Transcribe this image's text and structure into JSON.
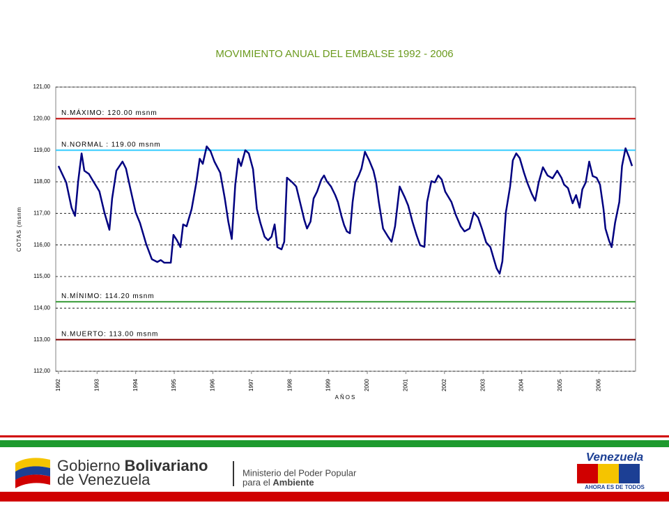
{
  "chart_data": {
    "type": "line",
    "title": "MOVIMIENTO ANUAL DEL EMBALSE 1992 - 2006",
    "y_label": "COTAS (msnm",
    "x_label": "AÑOS",
    "color": "#000080",
    "xlim": [
      1991.93,
      2006.95
    ],
    "xticks": [
      1992,
      1993,
      1994,
      1995,
      1996,
      1997,
      1998,
      1999,
      2000,
      2001,
      2002,
      2003,
      2004,
      2005,
      2006
    ],
    "ylim": [
      112,
      121
    ],
    "yticks": [
      {
        "value": 112,
        "label": "112,00"
      },
      {
        "value": 113,
        "label": "113,00"
      },
      {
        "value": 114,
        "label": "114,00"
      },
      {
        "value": 115,
        "label": "115,00"
      },
      {
        "value": 116,
        "label": "116,00"
      },
      {
        "value": 117,
        "label": "117,00"
      },
      {
        "value": 118,
        "label": "118,00"
      },
      {
        "value": 119,
        "label": "119,00"
      },
      {
        "value": 120,
        "label": "120,00"
      },
      {
        "value": 121,
        "label": "121,00"
      }
    ],
    "grid": true,
    "reference_lines": [
      {
        "value": 120,
        "label": "N.MÁXIMO: 120.00 msnm",
        "color": "#c00000"
      },
      {
        "value": 119,
        "label": "N.NORMAL : 119.00 msnm",
        "color": "#33ccff"
      },
      {
        "value": 114.2,
        "label": "N.MÍNIMO: 114.20 msnm",
        "color": "#339933"
      },
      {
        "value": 113,
        "label": "N.MUERTO: 113.00 msnm",
        "color": "#800000"
      }
    ],
    "x": [
      1992.0,
      1992.2,
      1992.34,
      1992.43,
      1992.51,
      1992.6,
      1992.67,
      1992.79,
      1992.92,
      1993.06,
      1993.19,
      1993.32,
      1993.39,
      1993.5,
      1993.66,
      1993.75,
      1993.86,
      1994.0,
      1994.11,
      1994.27,
      1994.42,
      1994.56,
      1994.65,
      1994.74,
      1994.91,
      1994.98,
      1995.07,
      1995.16,
      1995.23,
      1995.32,
      1995.45,
      1995.57,
      1995.66,
      1995.74,
      1995.84,
      1995.94,
      1996.04,
      1996.19,
      1996.31,
      1996.4,
      1996.49,
      1996.58,
      1996.66,
      1996.73,
      1996.84,
      1996.93,
      1997.04,
      1997.14,
      1997.23,
      1997.34,
      1997.43,
      1997.52,
      1997.6,
      1997.67,
      1997.78,
      1997.85,
      1997.92,
      1998.06,
      1998.16,
      1998.28,
      1998.37,
      1998.44,
      1998.53,
      1998.61,
      1998.7,
      1998.81,
      1998.88,
      1998.95,
      1999.06,
      1999.17,
      1999.24,
      1999.33,
      1999.4,
      1999.47,
      1999.55,
      1999.62,
      1999.69,
      1999.78,
      1999.85,
      1999.94,
      2000.05,
      2000.16,
      2000.23,
      2000.3,
      2000.41,
      2000.54,
      2000.63,
      2000.72,
      2000.84,
      2000.97,
      2001.06,
      2001.17,
      2001.28,
      2001.37,
      2001.48,
      2001.55,
      2001.66,
      2001.75,
      2001.84,
      2001.93,
      2002.02,
      2002.18,
      2002.29,
      2002.42,
      2002.52,
      2002.65,
      2002.76,
      2002.87,
      2002.97,
      2003.08,
      2003.19,
      2003.28,
      2003.35,
      2003.43,
      2003.5,
      2003.59,
      2003.7,
      2003.77,
      2003.86,
      2003.95,
      2004.06,
      2004.15,
      2004.26,
      2004.35,
      2004.44,
      2004.55,
      2004.67,
      2004.8,
      2004.92,
      2005.03,
      2005.1,
      2005.2,
      2005.32,
      2005.41,
      2005.5,
      2005.57,
      2005.66,
      2005.75,
      2005.84,
      2005.94,
      2006.03,
      2006.12,
      2006.17,
      2006.26,
      2006.33,
      2006.42,
      2006.53,
      2006.6,
      2006.69,
      2006.78,
      2006.86
    ],
    "values": [
      118.5,
      117.98,
      117.18,
      116.92,
      118.0,
      118.9,
      118.35,
      118.25,
      117.98,
      117.7,
      117.03,
      116.48,
      117.47,
      118.35,
      118.64,
      118.42,
      117.8,
      117.03,
      116.7,
      116.04,
      115.55,
      115.46,
      115.52,
      115.44,
      115.44,
      116.32,
      116.15,
      115.93,
      116.65,
      116.59,
      117.14,
      117.96,
      118.73,
      118.57,
      119.12,
      118.97,
      118.64,
      118.29,
      117.47,
      116.74,
      116.19,
      117.91,
      118.73,
      118.5,
      119.0,
      118.9,
      118.4,
      117.14,
      116.7,
      116.26,
      116.15,
      116.26,
      116.65,
      115.93,
      115.86,
      116.1,
      118.13,
      117.98,
      117.85,
      117.25,
      116.79,
      116.52,
      116.74,
      117.47,
      117.69,
      118.07,
      118.2,
      118.02,
      117.85,
      117.58,
      117.36,
      116.92,
      116.63,
      116.43,
      116.37,
      117.36,
      117.98,
      118.2,
      118.42,
      118.95,
      118.68,
      118.35,
      117.98,
      117.36,
      116.52,
      116.26,
      116.1,
      116.59,
      117.85,
      117.51,
      117.25,
      116.74,
      116.3,
      115.99,
      115.94,
      117.36,
      118.02,
      117.98,
      118.2,
      118.07,
      117.69,
      117.36,
      116.96,
      116.59,
      116.43,
      116.52,
      117.03,
      116.87,
      116.52,
      116.08,
      115.93,
      115.55,
      115.26,
      115.09,
      115.48,
      117.03,
      117.85,
      118.68,
      118.9,
      118.75,
      118.29,
      117.96,
      117.62,
      117.4,
      117.98,
      118.46,
      118.2,
      118.11,
      118.35,
      118.13,
      117.91,
      117.8,
      117.32,
      117.58,
      117.18,
      117.76,
      117.98,
      118.64,
      118.18,
      118.13,
      117.91,
      117.14,
      116.52,
      116.15,
      115.93,
      116.7,
      117.36,
      118.5,
      119.06,
      118.79,
      118.5
    ]
  },
  "footer": {
    "gov_line1": "Gobierno",
    "gov_line1_bold": "Bolivariano",
    "gov_line2": "de Venezuela",
    "ministry_line1": "Ministerio del Poder Popular",
    "ministry_line2": "para el",
    "ministry_line2_bold": "Ambiente",
    "brand": "Venezuela",
    "slogan": "AHORA ES DE TODOS"
  }
}
